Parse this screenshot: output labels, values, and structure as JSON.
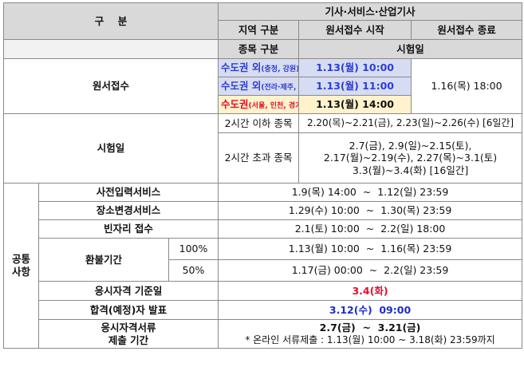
{
  "header": {
    "gubun": "구    분",
    "category_title": "기사·서비스·산업기사",
    "region": "지역 구분",
    "reg_start": "원서접수 시작",
    "reg_end": "원서접수 종료",
    "item": "종목 구분",
    "exam_day": "시험일"
  },
  "registration": {
    "label": "원서접수",
    "rows": [
      {
        "region": "수도권 외",
        "sub": "(충청, 강원)",
        "time": "1.13(월)  10:00"
      },
      {
        "region": "수도권 외",
        "sub": "(전라·제주, 경상)",
        "time": "1.13(월)  11:00"
      },
      {
        "region": "수도권",
        "sub": "(서울, 인천, 경기)",
        "time": "1.13(월)  14:00"
      }
    ],
    "end_time": "1.16(목)  18:00"
  },
  "exam": {
    "label": "시험일",
    "short_item": "2시간 이하 종목",
    "short_dates": "2.20(목)~2.21(금), 2.23(일)~2.26(수) [6일간]",
    "long_item": "2시간 초과 종목",
    "long_dates_1": "2.7(금), 2.9(일)~2.15(토),",
    "long_dates_2": "2.17(월)~2.19(수), 2.27(목)~3.1(토)",
    "long_dates_3": "3.3(월)~3.4(화) [16일간]"
  },
  "common": {
    "label_1": "공통",
    "label_2": "사항",
    "rows": [
      {
        "name": "사전입력서비스",
        "value": "1.9(목) 14:00  ~  1.12(일) 23:59"
      },
      {
        "name": "장소변경서비스",
        "value": "1.29(수) 10:00  ~  1.30(목) 23:59"
      },
      {
        "name": "빈자리 접수",
        "value": "2.1(토) 10:00  ~  2.2(일) 18:00"
      }
    ],
    "refund": {
      "name": "환불기간",
      "p100": "100%",
      "p100_value": "1.13(월) 10:00  ~  1.16(목) 23:59",
      "p50": "50%",
      "p50_value": "1.17(금) 00:00  ~  2.2(일) 23:59"
    },
    "qual_date": {
      "name": "응시자격 기준일",
      "value": "3.4(화)"
    },
    "announce": {
      "name": "합격(예정)자 발표",
      "value": "3.12(수)  09:00"
    },
    "docs": {
      "name_1": "응시자격서류",
      "name_2": "제출 기간",
      "value": "2.7(금)  ~  3.21(금)",
      "note": "* 온라인 서류제출 : 1.13(월) 10:00 ~ 3.18(화) 23:59까지"
    }
  },
  "colors": {
    "header_gray": "#d9d9d9",
    "light_gray": "#f2f2f2",
    "highlight_blue": "#d6dcf2",
    "highlight_yellow": "#fff2cc",
    "text_blue": "#2f3fcf",
    "text_red": "#e0102a"
  }
}
